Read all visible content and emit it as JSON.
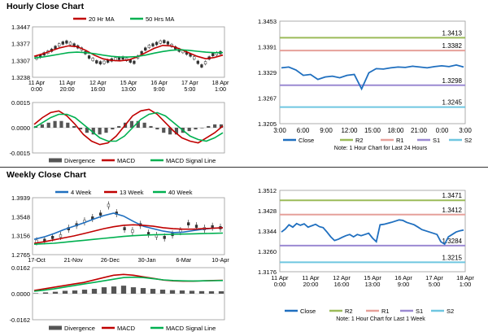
{
  "sections": {
    "hourly_title": "Hourly Close Chart",
    "weekly_title": "Weekly Close Chart"
  },
  "colors": {
    "ma_short": "#c00000",
    "ma_long": "#00b050",
    "close": "#1f6fbf",
    "r2": "#9bbb59",
    "r1": "#e6a09a",
    "s1": "#9b8ad2",
    "s2": "#6fc6e0",
    "divergence": "#555555",
    "candle": "#333333"
  },
  "chart_data": [
    {
      "id": "hourly-price",
      "type": "line",
      "legend": [
        "20 Hr MA",
        "50 Hrs MA"
      ],
      "ytick_labels": [
        "1.3447",
        "1.3377",
        "1.3307",
        "1.3238"
      ],
      "ylim": [
        1.3238,
        1.3447
      ],
      "xtick_labels": [
        [
          "11 Apr",
          "0:00"
        ],
        [
          "11 Apr",
          "20:00"
        ],
        [
          "12 Apr",
          "16:00"
        ],
        [
          "15 Apr",
          "13:00"
        ],
        [
          "16 Apr",
          "9:00"
        ],
        [
          "17 Apr",
          "5:00"
        ],
        [
          "18 Apr",
          "1:00"
        ]
      ],
      "candles": [
        1.3318,
        1.3325,
        1.3335,
        1.3342,
        1.335,
        1.3362,
        1.3372,
        1.338,
        1.3384,
        1.3378,
        1.3372,
        1.3364,
        1.3355,
        1.334,
        1.3322,
        1.3312,
        1.3302,
        1.3298,
        1.33,
        1.3305,
        1.331,
        1.3314,
        1.3316,
        1.3318,
        1.3312,
        1.3305,
        1.33,
        1.3322,
        1.334,
        1.3355,
        1.3366,
        1.3372,
        1.3378,
        1.3384,
        1.3386,
        1.338,
        1.337,
        1.336,
        1.335,
        1.3345,
        1.3338,
        1.333,
        1.3318,
        1.33,
        1.3285,
        1.3298,
        1.3318,
        1.3332,
        1.3336,
        1.334
      ],
      "series": [
        {
          "name": "20 Hr MA",
          "values": [
            1.3325,
            1.3335,
            1.3348,
            1.336,
            1.3368,
            1.3365,
            1.335,
            1.333,
            1.3315,
            1.3308,
            1.3306,
            1.331,
            1.3322,
            1.334,
            1.3358,
            1.337,
            1.3368,
            1.3355,
            1.334,
            1.3325,
            1.3315,
            1.332,
            1.333
          ]
        },
        {
          "name": "50 Hrs MA",
          "values": [
            1.3318,
            1.3322,
            1.3328,
            1.3334,
            1.334,
            1.3342,
            1.334,
            1.3336,
            1.333,
            1.3325,
            1.3322,
            1.3322,
            1.3324,
            1.333,
            1.3338,
            1.3345,
            1.335,
            1.3352,
            1.335,
            1.3346,
            1.3342,
            1.334,
            1.334
          ]
        }
      ]
    },
    {
      "id": "hourly-macd",
      "type": "line",
      "legend": [
        "Divergence",
        "MACD",
        "MACD Signal Line"
      ],
      "ytick_labels": [
        "0.0015",
        "0.0000",
        "-0.0015"
      ],
      "ylim": [
        -0.0015,
        0.0015
      ],
      "divergence": [
        0.0001,
        0.0002,
        0.0003,
        0.0004,
        0.0004,
        0.0003,
        0.0001,
        -0.0001,
        -0.0003,
        -0.0004,
        -0.0004,
        -0.0003,
        -0.0001,
        0.0001,
        0.0003,
        0.0004,
        0.0004,
        0.0003,
        0.0001,
        -0.0001,
        -0.0003,
        -0.0004,
        -0.0004,
        -0.0003,
        -0.0002,
        -0.0001,
        0.0,
        0.0001,
        0.0002,
        0.0002
      ],
      "series": [
        {
          "name": "MACD",
          "values": [
            0.0002,
            0.0006,
            0.0009,
            0.001,
            0.0007,
            0.0002,
            -0.0004,
            -0.0008,
            -0.001,
            -0.0009,
            -0.0005,
            0.0001,
            0.0007,
            0.001,
            0.0011,
            0.0008,
            0.0003,
            -0.0002,
            -0.0006,
            -0.0008,
            -0.0009,
            -0.0006,
            -0.0003,
            0.0001
          ]
        },
        {
          "name": "MACD Signal Line",
          "values": [
            0.0,
            0.0003,
            0.0006,
            0.0008,
            0.0008,
            0.0006,
            0.0002,
            -0.0002,
            -0.0006,
            -0.0008,
            -0.0008,
            -0.0005,
            0.0,
            0.0005,
            0.0008,
            0.0009,
            0.0007,
            0.0003,
            -0.0001,
            -0.0005,
            -0.0007,
            -0.0008,
            -0.0006,
            -0.0003
          ]
        }
      ]
    },
    {
      "id": "hourly-levels",
      "type": "line",
      "ytick_labels": [
        "1.3453",
        "1.3391",
        "1.3329",
        "1.3267",
        "1.3205"
      ],
      "ylim": [
        1.3205,
        1.3453
      ],
      "xtick_labels": [
        "3:00",
        "6:00",
        "9:00",
        "12:00",
        "15:00",
        "18:00",
        "21:00",
        "0:00",
        "3:00"
      ],
      "level_labels": {
        "r2": "1.3413",
        "r1": "1.3382",
        "s1": "1.3298",
        "s2": "1.3245"
      },
      "levels": {
        "r2": 1.3413,
        "r1": 1.3382,
        "s1": 1.3298,
        "s2": 1.3245
      },
      "legend": [
        "Close",
        "R2",
        "R1",
        "S1",
        "S2"
      ],
      "note": "Note: 1 Hour Chart for Last 24 Hours",
      "series": [
        {
          "name": "Close",
          "values": [
            1.334,
            1.3342,
            1.3335,
            1.3322,
            1.3324,
            1.3312,
            1.3318,
            1.332,
            1.3316,
            1.3322,
            1.3324,
            1.3289,
            1.3328,
            1.3338,
            1.3337,
            1.334,
            1.3342,
            1.3341,
            1.3344,
            1.3342,
            1.334,
            1.3343,
            1.3345,
            1.3343,
            1.3347,
            1.3342
          ]
        }
      ]
    },
    {
      "id": "weekly-price",
      "type": "line",
      "legend": [
        "4 Week",
        "13 Week",
        "40 Week"
      ],
      "ytick_labels": [
        "1.3939",
        "1.3548",
        "1.3156",
        "1.2765"
      ],
      "ylim": [
        1.2765,
        1.3939
      ],
      "xtick_labels": [
        "17-Oct",
        "21-Nov",
        "26-Dec",
        "30-Jan",
        "6-Mar",
        "10-Apr"
      ],
      "candles": [
        1.304,
        1.306,
        1.312,
        1.315,
        1.33,
        1.338,
        1.345,
        1.352,
        1.36,
        1.378,
        1.362,
        1.33,
        1.325,
        1.338,
        1.32,
        1.315,
        1.312,
        1.318,
        1.325,
        1.34,
        1.335,
        1.33,
        1.334,
        1.332
      ],
      "series": [
        {
          "name": "4 Week",
          "values": [
            1.308,
            1.313,
            1.32,
            1.328,
            1.335,
            1.342,
            1.35,
            1.357,
            1.362,
            1.356,
            1.345,
            1.335,
            1.33,
            1.325,
            1.322,
            1.323,
            1.326,
            1.329,
            1.331,
            1.332
          ]
        },
        {
          "name": "13 Week",
          "values": [
            1.3,
            1.303,
            1.307,
            1.311,
            1.315,
            1.32,
            1.325,
            1.33,
            1.334,
            1.337,
            1.338,
            1.337,
            1.335,
            1.332,
            1.33,
            1.329,
            1.329,
            1.33,
            1.331,
            1.332
          ]
        },
        {
          "name": "40 Week",
          "values": [
            1.298,
            1.299,
            1.3,
            1.302,
            1.304,
            1.306,
            1.308,
            1.31,
            1.312,
            1.314,
            1.3155,
            1.3165,
            1.3175,
            1.318,
            1.3185,
            1.319,
            1.3195,
            1.32,
            1.3205,
            1.321
          ]
        }
      ]
    },
    {
      "id": "weekly-macd",
      "type": "line",
      "legend": [
        "Divergence",
        "MACD",
        "MACD Signal Line"
      ],
      "ytick_labels": [
        "0.0162",
        "0.0000",
        "-0.0162"
      ],
      "ylim": [
        -0.0162,
        0.0162
      ],
      "divergence": [
        0.0003,
        0.0008,
        0.0012,
        0.0018,
        0.002,
        0.0025,
        0.003,
        0.004,
        0.0045,
        0.005,
        0.004,
        0.0035,
        0.003,
        0.0025,
        0.0022,
        0.002,
        0.0018,
        0.0016,
        0.0015,
        0.0015
      ],
      "series": [
        {
          "name": "MACD",
          "values": [
            0.002,
            0.003,
            0.004,
            0.005,
            0.006,
            0.007,
            0.0085,
            0.01,
            0.0115,
            0.012,
            0.0115,
            0.0105,
            0.0095,
            0.0085,
            0.008,
            0.0078,
            0.0078,
            0.008,
            0.0082,
            0.0083
          ]
        },
        {
          "name": "MACD Signal Line",
          "values": [
            0.0015,
            0.0022,
            0.003,
            0.004,
            0.005,
            0.006,
            0.007,
            0.008,
            0.009,
            0.01,
            0.0103,
            0.01,
            0.0093,
            0.0086,
            0.0082,
            0.008,
            0.0079,
            0.008,
            0.0081,
            0.0082
          ]
        }
      ]
    },
    {
      "id": "weekly-levels",
      "type": "line",
      "ytick_labels": [
        "1.3512",
        "1.3428",
        "1.3344",
        "1.3260",
        "1.3176"
      ],
      "ylim": [
        1.3176,
        1.3512
      ],
      "xtick_labels": [
        [
          "11 Apr",
          "0:00"
        ],
        [
          "11 Apr",
          "20:00"
        ],
        [
          "12 Apr",
          "16:00"
        ],
        [
          "15 Apr",
          "13:00"
        ],
        [
          "16 Apr",
          "9:00"
        ],
        [
          "17 Apr",
          "5:00"
        ],
        [
          "18 Apr",
          "1:00"
        ]
      ],
      "level_labels": {
        "r2": "1.3471",
        "r1": "1.3412",
        "s1": "1.3284",
        "s2": "1.3215"
      },
      "levels": {
        "r2": 1.3471,
        "r1": 1.3412,
        "s1": 1.3284,
        "s2": 1.3215
      },
      "legend": [
        "Close",
        "R2",
        "R1",
        "S1",
        "S2"
      ],
      "note": "Note: 1 Hour Chart for Last 1 Week",
      "series": [
        {
          "name": "Close",
          "values": [
            1.334,
            1.3352,
            1.337,
            1.336,
            1.3375,
            1.3368,
            1.3374,
            1.336,
            1.3366,
            1.3372,
            1.3362,
            1.3358,
            1.334,
            1.332,
            1.3305,
            1.331,
            1.3318,
            1.3325,
            1.333,
            1.332,
            1.333,
            1.3325,
            1.333,
            1.3335,
            1.3315,
            1.33,
            1.337,
            1.3372,
            1.3376,
            1.338,
            1.3385,
            1.339,
            1.3388,
            1.338,
            1.3375,
            1.337,
            1.336,
            1.335,
            1.3345,
            1.334,
            1.3335,
            1.333,
            1.33,
            1.329,
            1.332,
            1.333,
            1.334,
            1.3345,
            1.3348
          ]
        }
      ]
    }
  ]
}
